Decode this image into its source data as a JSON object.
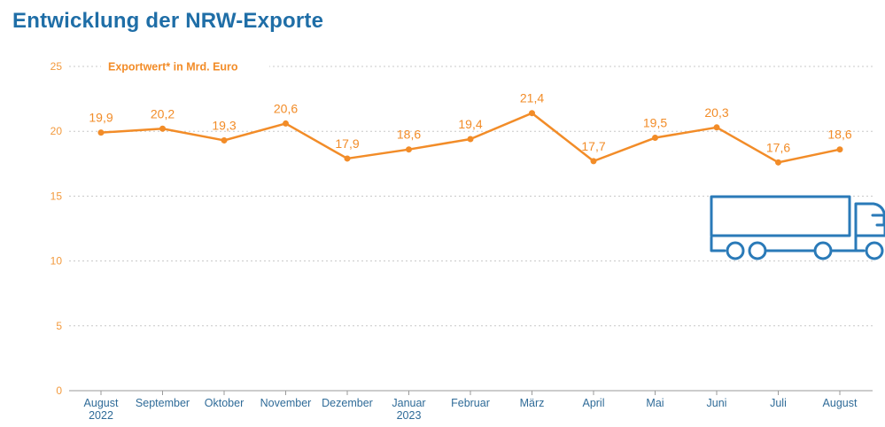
{
  "title": "Entwicklung der NRW-Exporte",
  "chart_data": {
    "type": "line",
    "ylabel": "Exportwert* in Mrd. Euro",
    "ylim": [
      0,
      25
    ],
    "yticks": [
      "0",
      "5",
      "10",
      "15",
      "20",
      "25"
    ],
    "grid": true,
    "categories": [
      [
        "August",
        "2022"
      ],
      [
        "September"
      ],
      [
        "Oktober"
      ],
      [
        "November"
      ],
      [
        "Dezember"
      ],
      [
        "Januar",
        "2023"
      ],
      [
        "Februar"
      ],
      [
        "März"
      ],
      [
        "April"
      ],
      [
        "Mai"
      ],
      [
        "Juni"
      ],
      [
        "Juli"
      ],
      [
        "August"
      ]
    ],
    "series": [
      {
        "values": [
          19.9,
          20.2,
          19.3,
          20.6,
          17.9,
          18.6,
          19.4,
          21.4,
          17.7,
          19.5,
          20.3,
          17.6,
          18.6
        ],
        "labels": [
          "19,9",
          "20,2",
          "19,3",
          "20,6",
          "17,9",
          "18,6",
          "19,4",
          "21,4",
          "17,7",
          "19,5",
          "20,3",
          "17,6",
          "18,6"
        ]
      }
    ]
  },
  "decoration": {
    "icon": "truck-icon"
  },
  "colors": {
    "line": "#f28c28",
    "axis_text": "#2f6b98",
    "title": "#1f6ea7",
    "icon": "#2a7ab8",
    "grid": "#c8c8c8"
  }
}
